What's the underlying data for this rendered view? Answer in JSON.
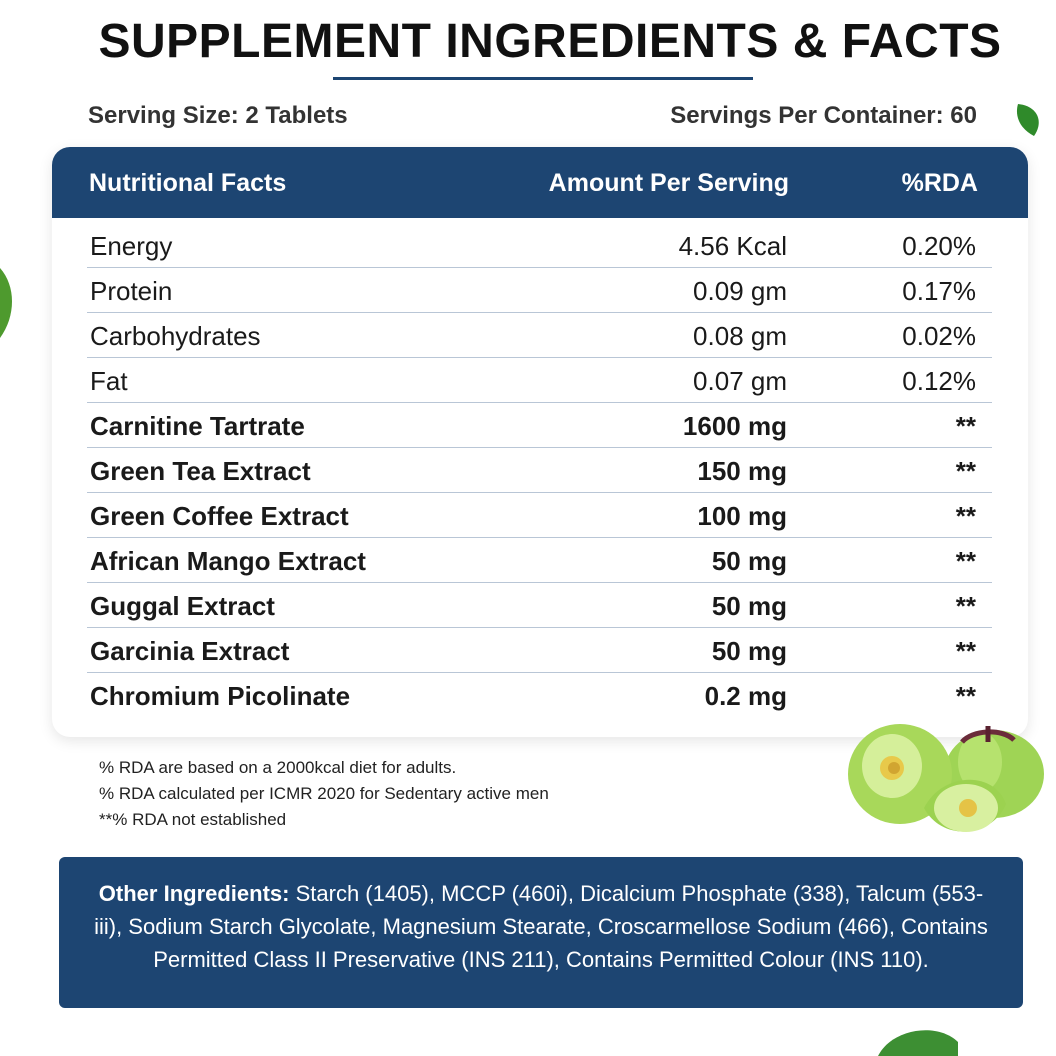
{
  "title": "SUPPLEMENT INGREDIENTS & FACTS",
  "serving": {
    "size": "Serving Size: 2 Tablets",
    "per_container": "Servings Per Container: 60"
  },
  "table": {
    "headers": {
      "name": "Nutritional Facts",
      "amount": "Amount Per Serving",
      "rda": "%RDA"
    },
    "rows": [
      {
        "name": "Energy",
        "amount": "4.56 Kcal",
        "rda": "0.20%"
      },
      {
        "name": "Protein",
        "amount": "0.09 gm",
        "rda": "0.17%"
      },
      {
        "name": "Carbohydrates",
        "amount": "0.08 gm",
        "rda": "0.02%"
      },
      {
        "name": "Fat",
        "amount": "0.07 gm",
        "rda": "0.12%"
      },
      {
        "name": "Carnitine Tartrate",
        "amount": "1600 mg",
        "rda": "**"
      },
      {
        "name": "Green Tea Extract",
        "amount": "150 mg",
        "rda": "**"
      },
      {
        "name": "Green Coffee Extract",
        "amount": "100 mg",
        "rda": "**"
      },
      {
        "name": "African Mango Extract",
        "amount": "50 mg",
        "rda": "**"
      },
      {
        "name": "Guggal Extract",
        "amount": "50 mg",
        "rda": "**"
      },
      {
        "name": "Garcinia Extract",
        "amount": "50 mg",
        "rda": "**"
      },
      {
        "name": "Chromium Picolinate",
        "amount": "0.2 mg",
        "rda": "**"
      }
    ]
  },
  "notes": [
    "% RDA are based on a 2000kcal diet for adults.",
    "% RDA calculated per ICMR 2020 for Sedentary active men",
    "**% RDA not established"
  ],
  "other_ingredients": {
    "label": "Other Ingredients:",
    "text": " Starch (1405), MCCP (460i), Dicalcium Phosphate (338), Talcum (553-iii), Sodium Starch Glycolate, Magnesium Stearate, Croscarmellose Sodium (466), Contains Permitted Class II Preservative (INS 211), Contains Permitted Colour (INS 110)."
  },
  "colors": {
    "navy": "#1d4572",
    "fruit_green": "#a8d85a",
    "leaf_green": "#2f8a2a"
  }
}
